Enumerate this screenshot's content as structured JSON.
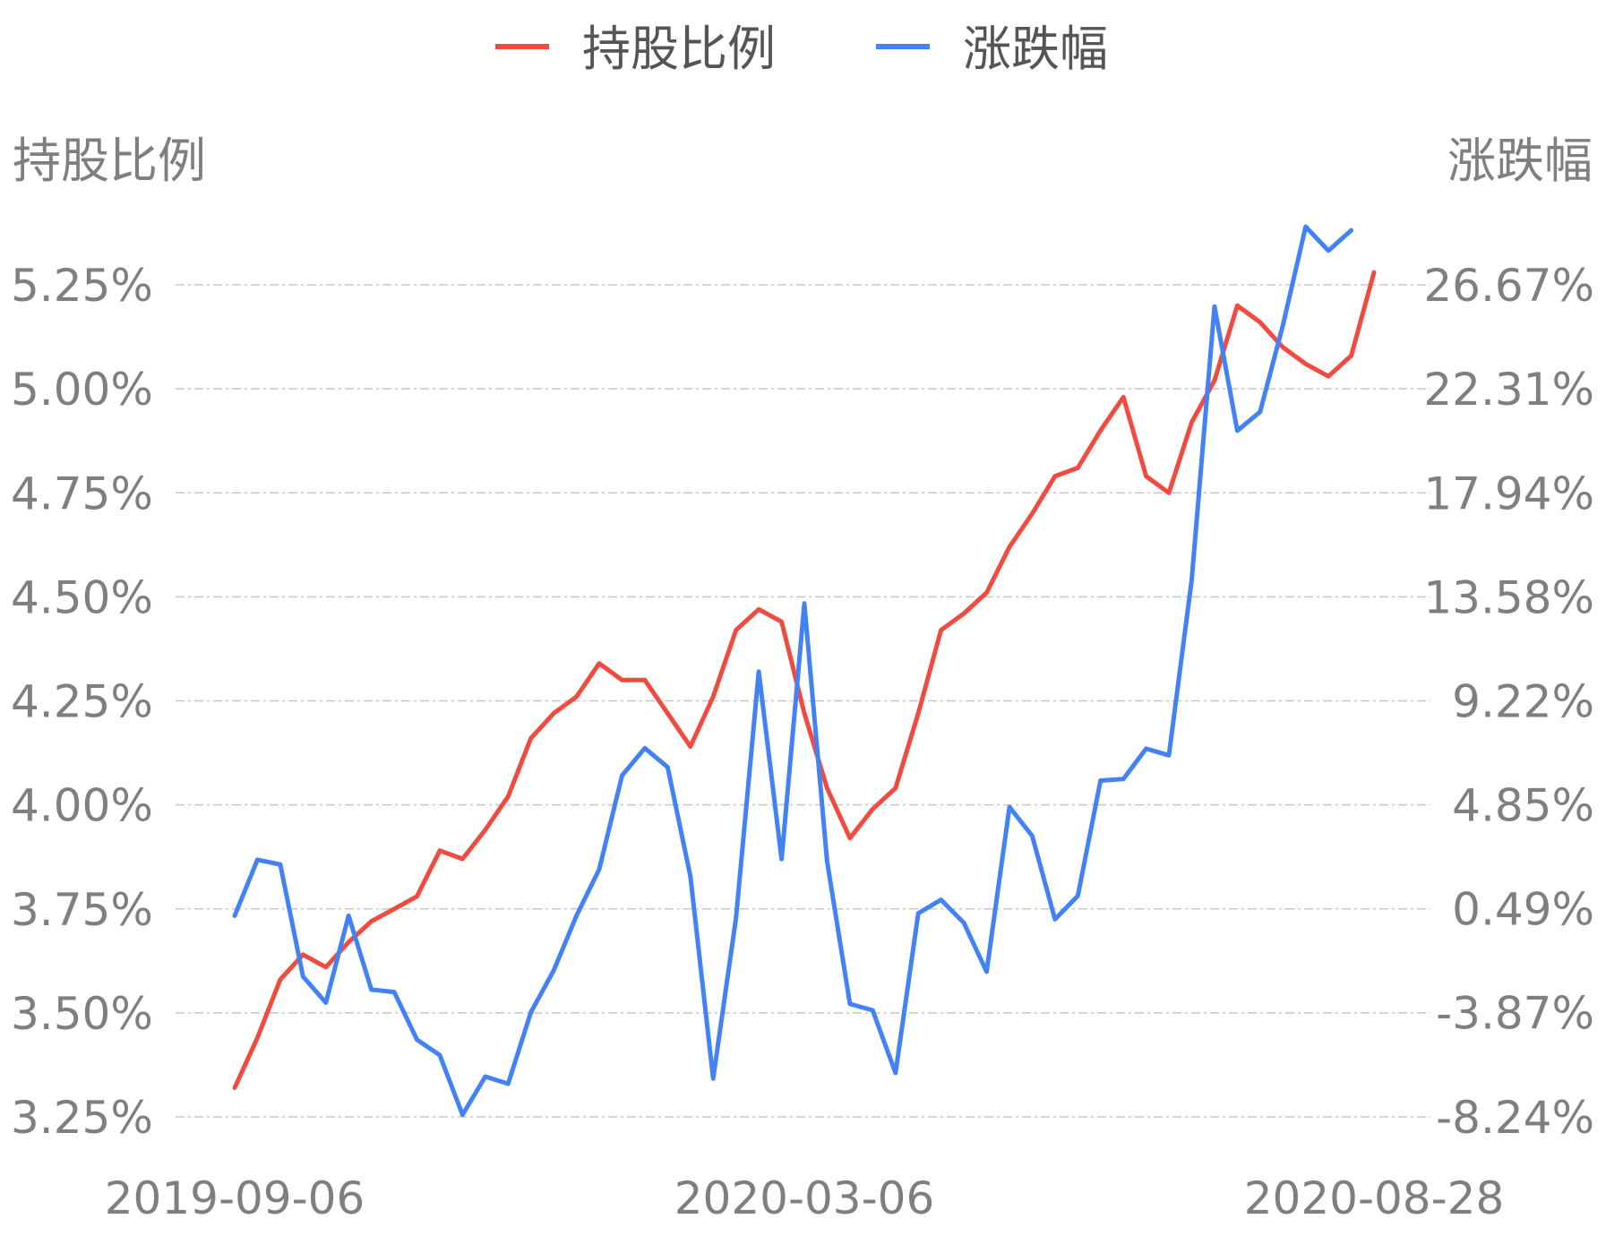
{
  "chart_data": {
    "type": "line",
    "legend": {
      "placement": "top-center",
      "items": [
        {
          "label": "持股比例",
          "color": "#f24a3f"
        },
        {
          "label": "涨跌幅",
          "color": "#4282f6"
        }
      ]
    },
    "y_left": {
      "title": "持股比例",
      "ticks": [
        "5.25%",
        "5.00%",
        "4.75%",
        "4.50%",
        "4.25%",
        "4.00%",
        "3.75%",
        "3.50%",
        "3.25%"
      ],
      "tick_values": [
        5.25,
        5.0,
        4.75,
        4.5,
        4.25,
        4.0,
        3.75,
        3.5,
        3.25
      ],
      "range": [
        3.25,
        5.25
      ]
    },
    "y_right": {
      "title": "涨跌幅",
      "ticks": [
        "26.67%",
        "22.31%",
        "17.94%",
        "13.58%",
        "9.22%",
        "4.85%",
        "0.49%",
        "-3.87%",
        "-8.24%"
      ],
      "tick_values": [
        26.67,
        22.31,
        17.94,
        13.58,
        9.22,
        4.85,
        0.49,
        -3.87,
        -8.24
      ],
      "range": [
        -8.24,
        26.67
      ]
    },
    "x_axis": {
      "ticks": [
        "2019-09-06",
        "2020-03-06",
        "2020-08-28"
      ],
      "tick_positions": [
        0,
        25,
        50
      ]
    },
    "grid": true,
    "series": [
      {
        "name": "持股比例",
        "axis": "left",
        "color": "#f24a3f",
        "values": [
          3.32,
          3.44,
          3.58,
          3.64,
          3.61,
          3.67,
          3.72,
          3.75,
          3.78,
          3.89,
          3.87,
          3.94,
          4.02,
          4.16,
          4.22,
          4.26,
          4.34,
          4.3,
          4.3,
          4.22,
          4.14,
          4.26,
          4.42,
          4.47,
          4.44,
          4.22,
          4.04,
          3.92,
          3.99,
          4.04,
          4.22,
          4.42,
          4.46,
          4.51,
          4.62,
          4.7,
          4.79,
          4.81,
          4.9,
          4.98,
          4.79,
          4.75,
          4.92,
          5.02,
          5.2,
          5.16,
          5.1,
          5.06,
          5.03,
          5.08,
          5.28
        ]
      },
      {
        "name": "涨跌幅",
        "axis": "right",
        "color": "#4282f6",
        "values": [
          0.2,
          2.55,
          2.35,
          -2.35,
          -3.45,
          0.2,
          -2.9,
          -3.0,
          -5.0,
          -5.65,
          -8.15,
          -6.55,
          -6.85,
          -3.85,
          -2.1,
          0.2,
          2.15,
          6.08,
          7.23,
          6.43,
          1.85,
          -6.63,
          0.1,
          10.44,
          2.57,
          13.3,
          2.48,
          -3.5,
          -3.77,
          -6.4,
          0.3,
          0.87,
          -0.1,
          -2.15,
          4.76,
          3.55,
          0.05,
          1.03,
          5.87,
          5.94,
          7.21,
          6.93,
          14.3,
          25.76,
          20.55,
          21.34,
          24.96,
          29.11,
          28.1,
          28.96,
          null
        ]
      }
    ]
  }
}
